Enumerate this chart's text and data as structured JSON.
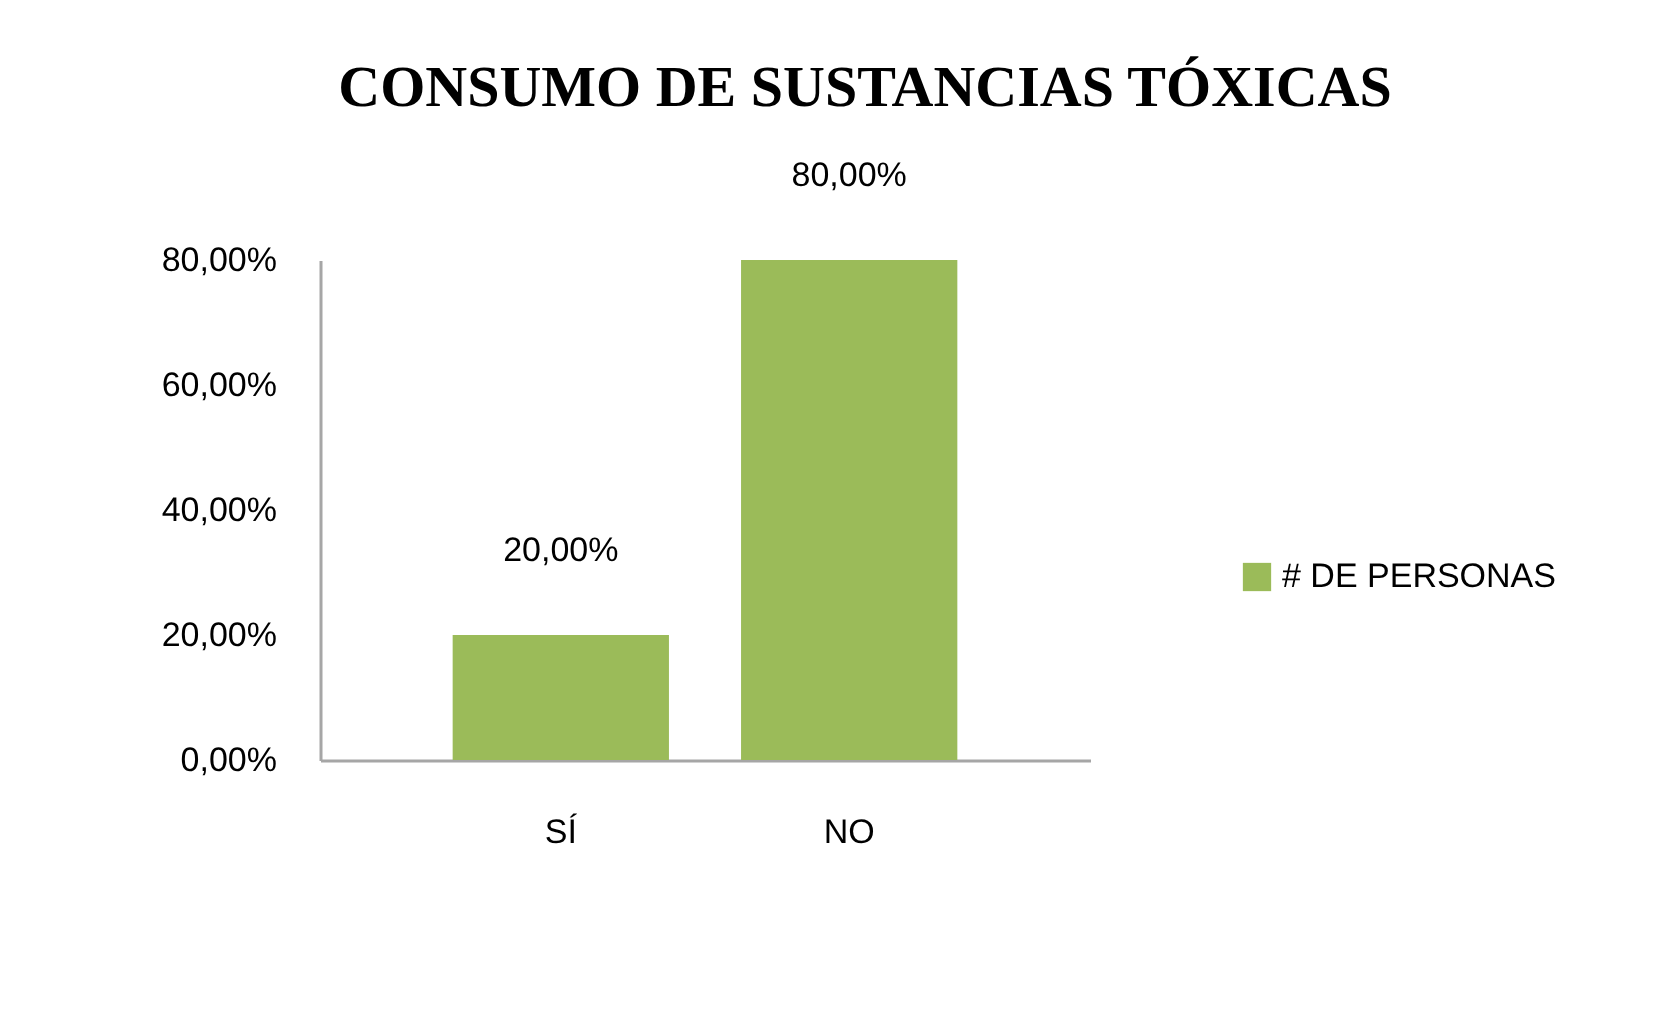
{
  "chart_data": {
    "type": "bar",
    "title": "CONSUMO DE SUSTANCIAS TÓXICAS",
    "categories": [
      "SÍ",
      "NO"
    ],
    "series": [
      {
        "name": "# DE PERSONAS",
        "color": "#9bbb59",
        "values": [
          20,
          80
        ],
        "value_labels": [
          "20,00%",
          "80,00%"
        ]
      }
    ],
    "ylim": [
      0,
      80
    ],
    "yticks": [
      {
        "value": 0,
        "label": "0,00%"
      },
      {
        "value": 20,
        "label": "20,00%"
      },
      {
        "value": 40,
        "label": "40,00%"
      },
      {
        "value": 60,
        "label": "60,00%"
      },
      {
        "value": 80,
        "label": "80,00%"
      }
    ],
    "grid": false,
    "legend": "right"
  }
}
